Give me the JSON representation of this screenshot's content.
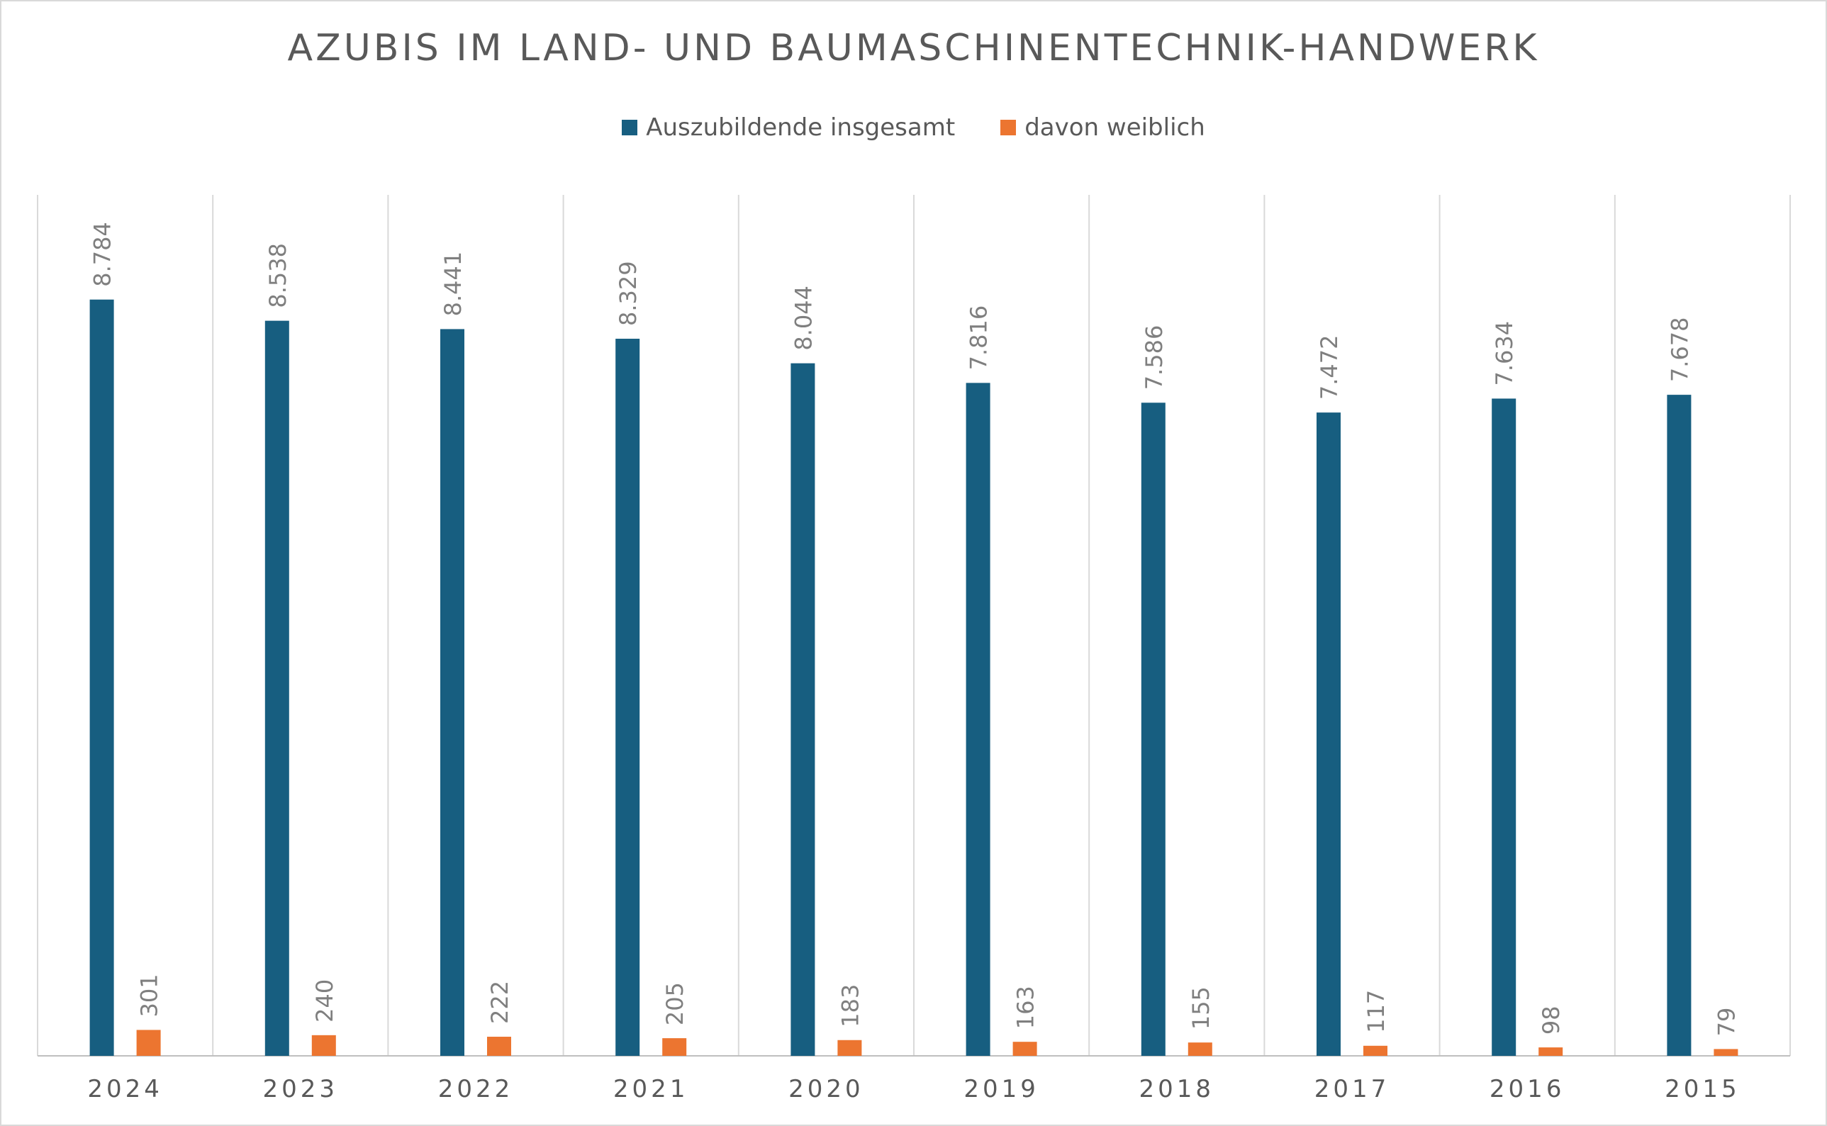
{
  "colors": {
    "total": "#175E80",
    "female": "#EC7530",
    "gridline": "#d9d9d9",
    "axis": "#bfbfbf",
    "label": "#595959",
    "datalabel": "#7f7f7f"
  },
  "chart_data": {
    "type": "bar",
    "title": "AZUBIS IM LAND- UND BAUMASCHINENTECHNIK-HANDWERK",
    "legend_position": "top",
    "grid": "vertical separators between categories",
    "categories": [
      "2024",
      "2023",
      "2022",
      "2021",
      "2020",
      "2019",
      "2018",
      "2017",
      "2016",
      "2015"
    ],
    "series": [
      {
        "name": "Auszubildende insgesamt",
        "color": "#175E80",
        "values": [
          8784,
          8538,
          8441,
          8329,
          8044,
          7816,
          7586,
          7472,
          7634,
          7678
        ],
        "labels": [
          "8.784",
          "8.538",
          "8.441",
          "8.329",
          "8.044",
          "7.816",
          "7.586",
          "7.472",
          "7.634",
          "7.678"
        ]
      },
      {
        "name": "davon weiblich",
        "color": "#EC7530",
        "values": [
          301,
          240,
          222,
          205,
          183,
          163,
          155,
          117,
          98,
          79
        ],
        "labels": [
          "301",
          "240",
          "222",
          "205",
          "183",
          "163",
          "155",
          "117",
          "98",
          "79"
        ]
      }
    ],
    "ylim": [
      0,
      10000
    ]
  }
}
